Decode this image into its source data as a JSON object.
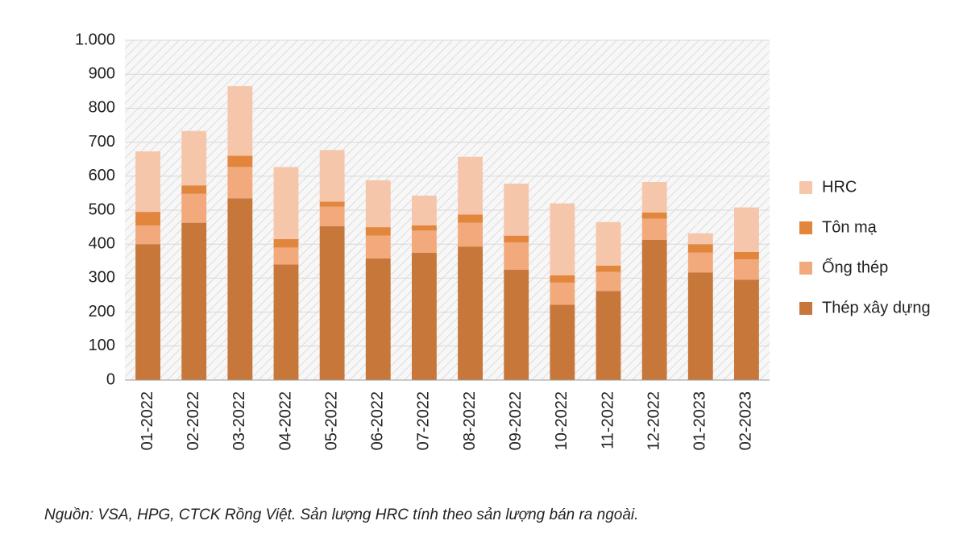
{
  "chart_data": {
    "type": "stacked_bar",
    "categories": [
      "01-2022",
      "02-2022",
      "03-2022",
      "04-2022",
      "05-2022",
      "06-2022",
      "07-2022",
      "08-2022",
      "09-2022",
      "10-2022",
      "11-2022",
      "12-2022",
      "01-2023",
      "02-2023"
    ],
    "series": [
      {
        "name": "Thép xây dựng",
        "color": "#c8773a",
        "values": [
          400,
          463,
          535,
          340,
          453,
          358,
          375,
          393,
          325,
          222,
          262,
          413,
          317,
          295
        ]
      },
      {
        "name": "Ống thép",
        "color": "#f2aa7c",
        "values": [
          55,
          85,
          92,
          50,
          57,
          67,
          65,
          70,
          80,
          65,
          56,
          62,
          58,
          60
        ]
      },
      {
        "name": "Tôn mạ",
        "color": "#e2863e",
        "values": [
          40,
          25,
          33,
          25,
          15,
          25,
          15,
          24,
          20,
          21,
          19,
          18,
          25,
          22
        ]
      },
      {
        "name": "HRC",
        "color": "#f6c6ab",
        "values": [
          178,
          160,
          205,
          212,
          152,
          138,
          88,
          170,
          153,
          212,
          128,
          90,
          32,
          131
        ]
      }
    ],
    "ylim": [
      0,
      1000
    ],
    "yticks": [
      0,
      100,
      200,
      300,
      400,
      500,
      600,
      700,
      800,
      900,
      {
        "value": 1000,
        "label": "1.000"
      }
    ],
    "grid": true,
    "legend": "right",
    "source": "Nguồn: VSA, HPG, CTCK Rồng Việt. Sản lượng HRC tính theo sản lượng bán ra ngoài."
  }
}
